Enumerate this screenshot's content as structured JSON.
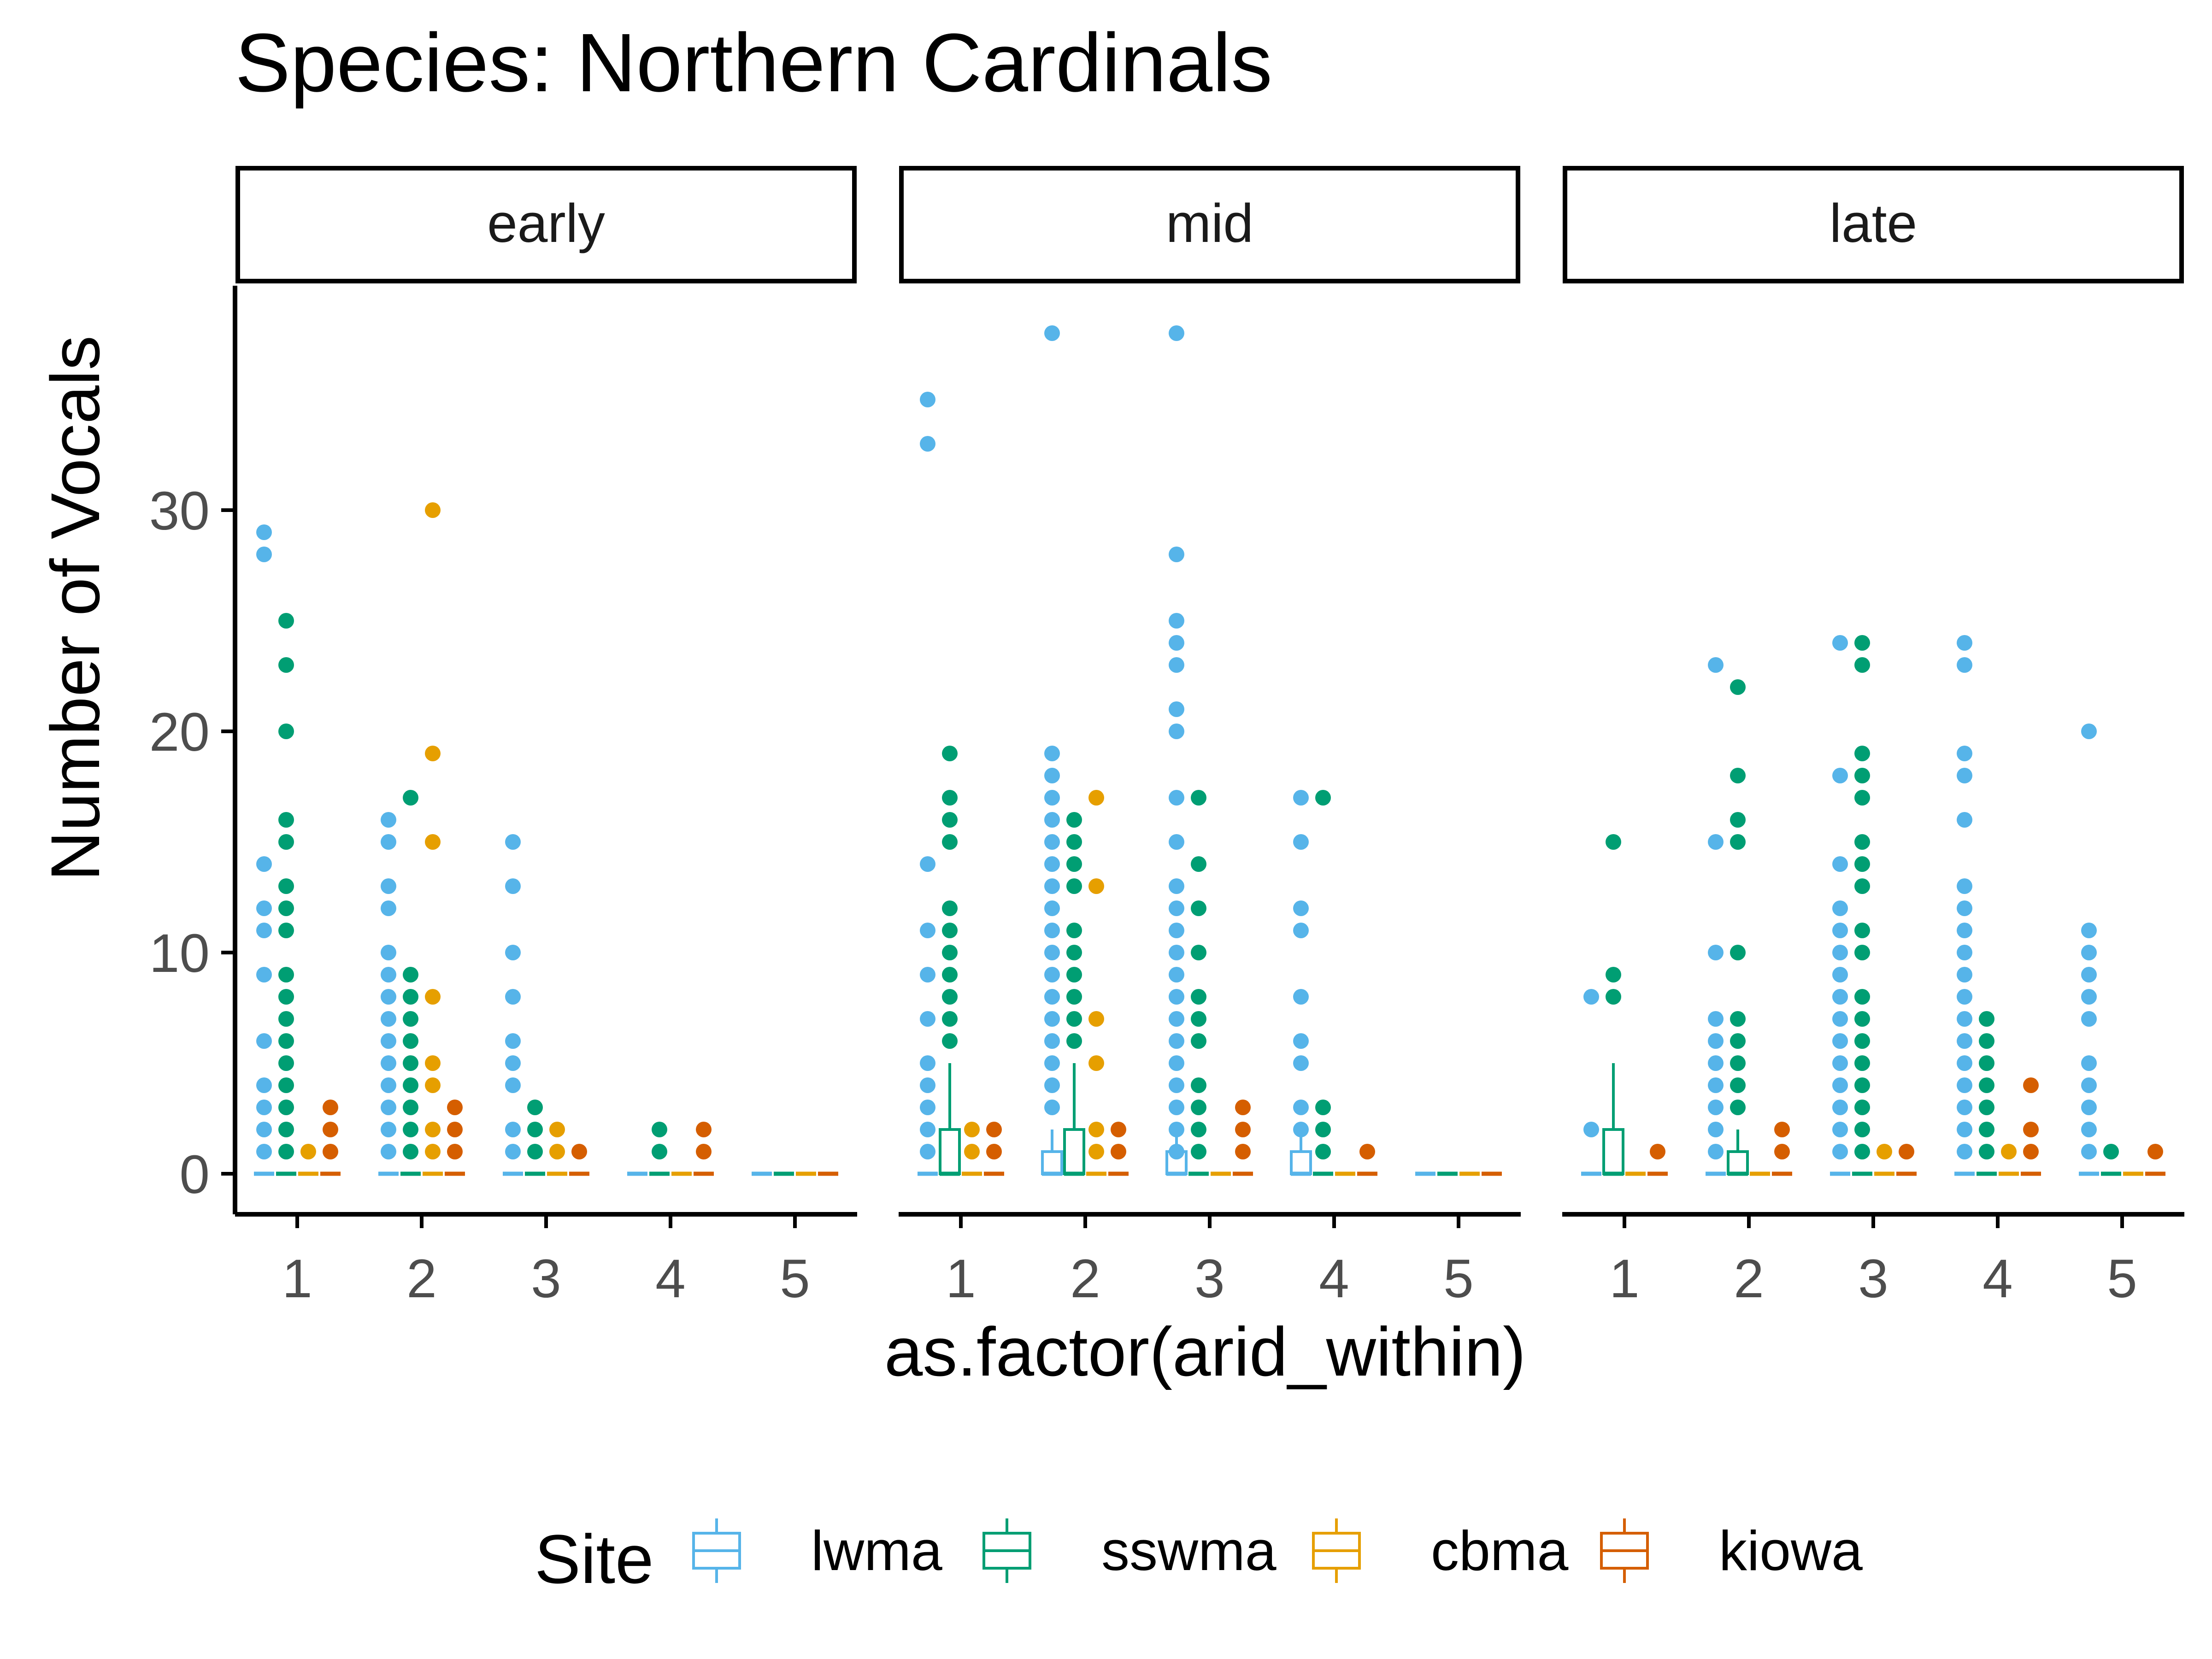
{
  "chart_data": {
    "type": "boxplot",
    "title": "Species: Northern Cardinals",
    "xlabel": "as.factor(arid_within)",
    "ylabel": "Number of Vocals",
    "facets": [
      "early",
      "mid",
      "late"
    ],
    "categories": [
      "1",
      "2",
      "3",
      "4",
      "5"
    ],
    "y_ticks": [
      0,
      10,
      20,
      30
    ],
    "ylim": [
      -2,
      40
    ],
    "legend": {
      "title": "Site",
      "position": "bottom",
      "entries": [
        {
          "name": "lwma",
          "color": "#56B4E9"
        },
        {
          "name": "sswma",
          "color": "#009E73"
        },
        {
          "name": "cbma",
          "color": "#E69F00"
        },
        {
          "name": "kiowa",
          "color": "#D55E00"
        }
      ]
    },
    "boxes": [
      {
        "facet": 1,
        "x": 1,
        "site": 1,
        "q1": 0,
        "median": 0,
        "q3": 2,
        "whisker_high": 5
      },
      {
        "facet": 1,
        "x": 2,
        "site": 0,
        "q1": 0,
        "median": 0,
        "q3": 1,
        "whisker_high": 2
      },
      {
        "facet": 1,
        "x": 2,
        "site": 1,
        "q1": 0,
        "median": 0,
        "q3": 2,
        "whisker_high": 5
      },
      {
        "facet": 1,
        "x": 3,
        "site": 0,
        "q1": 0,
        "median": 0,
        "q3": 1,
        "whisker_high": 2
      },
      {
        "facet": 1,
        "x": 4,
        "site": 0,
        "q1": 0,
        "median": 0,
        "q3": 1,
        "whisker_high": 2
      },
      {
        "facet": 2,
        "x": 1,
        "site": 1,
        "q1": 0,
        "median": 0,
        "q3": 2,
        "whisker_high": 5
      },
      {
        "facet": 2,
        "x": 2,
        "site": 1,
        "q1": 0,
        "median": 0,
        "q3": 1,
        "whisker_high": 2
      }
    ],
    "points": [
      {
        "facet": 0,
        "x": 1,
        "site": 0,
        "values": [
          29,
          28,
          14,
          12,
          11,
          9,
          6,
          4,
          3,
          2,
          1
        ]
      },
      {
        "facet": 0,
        "x": 1,
        "site": 1,
        "values": [
          25,
          23,
          20,
          16,
          15,
          13,
          12,
          11,
          9,
          8,
          7,
          6,
          5,
          4,
          3,
          2,
          1
        ]
      },
      {
        "facet": 0,
        "x": 1,
        "site": 2,
        "values": [
          1
        ]
      },
      {
        "facet": 0,
        "x": 1,
        "site": 3,
        "values": [
          3,
          2,
          1
        ]
      },
      {
        "facet": 0,
        "x": 2,
        "site": 0,
        "values": [
          16,
          15,
          13,
          12,
          10,
          9,
          8,
          7,
          6,
          5,
          4,
          3,
          2,
          1
        ]
      },
      {
        "facet": 0,
        "x": 2,
        "site": 1,
        "values": [
          17,
          9,
          8,
          7,
          6,
          5,
          4,
          3,
          2,
          1
        ]
      },
      {
        "facet": 0,
        "x": 2,
        "site": 2,
        "values": [
          30,
          19,
          15,
          8,
          5,
          4,
          2,
          1
        ]
      },
      {
        "facet": 0,
        "x": 2,
        "site": 3,
        "values": [
          3,
          2,
          1
        ]
      },
      {
        "facet": 0,
        "x": 3,
        "site": 0,
        "values": [
          15,
          13,
          10,
          8,
          6,
          5,
          4,
          2,
          1
        ]
      },
      {
        "facet": 0,
        "x": 3,
        "site": 1,
        "values": [
          3,
          2,
          1
        ]
      },
      {
        "facet": 0,
        "x": 3,
        "site": 2,
        "values": [
          2,
          1
        ]
      },
      {
        "facet": 0,
        "x": 3,
        "site": 3,
        "values": [
          1
        ]
      },
      {
        "facet": 0,
        "x": 4,
        "site": 1,
        "values": [
          2,
          1
        ]
      },
      {
        "facet": 0,
        "x": 4,
        "site": 3,
        "values": [
          2,
          1
        ]
      },
      {
        "facet": 1,
        "x": 1,
        "site": 0,
        "values": [
          35,
          33,
          14,
          11,
          9,
          7,
          5,
          4,
          3,
          2,
          1
        ]
      },
      {
        "facet": 1,
        "x": 1,
        "site": 1,
        "values": [
          19,
          17,
          16,
          15,
          12,
          11,
          10,
          9,
          8,
          7,
          6
        ]
      },
      {
        "facet": 1,
        "x": 1,
        "site": 2,
        "values": [
          2,
          1
        ]
      },
      {
        "facet": 1,
        "x": 1,
        "site": 3,
        "values": [
          2,
          1
        ]
      },
      {
        "facet": 1,
        "x": 2,
        "site": 0,
        "values": [
          38,
          19,
          18,
          17,
          16,
          15,
          14,
          13,
          12,
          11,
          10,
          9,
          8,
          7,
          6,
          5,
          4,
          3
        ]
      },
      {
        "facet": 1,
        "x": 2,
        "site": 1,
        "values": [
          16,
          15,
          14,
          13,
          11,
          10,
          9,
          8,
          7,
          6
        ]
      },
      {
        "facet": 1,
        "x": 2,
        "site": 2,
        "values": [
          17,
          13,
          7,
          5,
          2,
          1
        ]
      },
      {
        "facet": 1,
        "x": 2,
        "site": 3,
        "values": [
          2,
          1
        ]
      },
      {
        "facet": 1,
        "x": 3,
        "site": 0,
        "values": [
          38,
          28,
          25,
          24,
          23,
          21,
          20,
          17,
          15,
          13,
          12,
          11,
          10,
          9,
          8,
          7,
          6,
          5,
          4,
          3,
          2,
          1
        ]
      },
      {
        "facet": 1,
        "x": 3,
        "site": 1,
        "values": [
          17,
          14,
          12,
          10,
          8,
          7,
          6,
          4,
          3,
          2,
          1
        ]
      },
      {
        "facet": 1,
        "x": 3,
        "site": 3,
        "values": [
          3,
          2,
          1
        ]
      },
      {
        "facet": 1,
        "x": 4,
        "site": 0,
        "values": [
          17,
          15,
          12,
          11,
          8,
          6,
          5,
          3,
          2
        ]
      },
      {
        "facet": 1,
        "x": 4,
        "site": 1,
        "values": [
          17,
          3,
          2,
          1
        ]
      },
      {
        "facet": 1,
        "x": 4,
        "site": 3,
        "values": [
          1
        ]
      },
      {
        "facet": 2,
        "x": 1,
        "site": 0,
        "values": [
          8,
          2
        ]
      },
      {
        "facet": 2,
        "x": 1,
        "site": 1,
        "values": [
          15,
          9,
          8
        ]
      },
      {
        "facet": 2,
        "x": 1,
        "site": 3,
        "values": [
          1
        ]
      },
      {
        "facet": 2,
        "x": 2,
        "site": 0,
        "values": [
          23,
          15,
          10,
          7,
          6,
          5,
          4,
          3,
          2,
          1
        ]
      },
      {
        "facet": 2,
        "x": 2,
        "site": 1,
        "values": [
          22,
          18,
          16,
          15,
          10,
          7,
          6,
          5,
          4,
          3
        ]
      },
      {
        "facet": 2,
        "x": 2,
        "site": 3,
        "values": [
          2,
          1
        ]
      },
      {
        "facet": 2,
        "x": 3,
        "site": 0,
        "values": [
          24,
          18,
          14,
          12,
          11,
          10,
          9,
          8,
          7,
          6,
          5,
          4,
          3,
          2,
          1
        ]
      },
      {
        "facet": 2,
        "x": 3,
        "site": 1,
        "values": [
          24,
          23,
          19,
          18,
          17,
          15,
          14,
          13,
          11,
          10,
          8,
          7,
          6,
          5,
          4,
          3,
          2,
          1
        ]
      },
      {
        "facet": 2,
        "x": 3,
        "site": 2,
        "values": [
          1
        ]
      },
      {
        "facet": 2,
        "x": 3,
        "site": 3,
        "values": [
          1
        ]
      },
      {
        "facet": 2,
        "x": 4,
        "site": 0,
        "values": [
          24,
          23,
          19,
          18,
          16,
          13,
          12,
          11,
          10,
          9,
          8,
          7,
          6,
          5,
          4,
          3,
          2,
          1
        ]
      },
      {
        "facet": 2,
        "x": 4,
        "site": 1,
        "values": [
          7,
          6,
          5,
          4,
          3,
          2,
          1
        ]
      },
      {
        "facet": 2,
        "x": 4,
        "site": 2,
        "values": [
          1
        ]
      },
      {
        "facet": 2,
        "x": 4,
        "site": 3,
        "values": [
          4,
          2,
          1
        ]
      },
      {
        "facet": 2,
        "x": 5,
        "site": 0,
        "values": [
          20,
          11,
          10,
          9,
          8,
          7,
          5,
          4,
          3,
          2,
          1
        ]
      },
      {
        "facet": 2,
        "x": 5,
        "site": 1,
        "values": [
          1
        ]
      },
      {
        "facet": 2,
        "x": 5,
        "site": 3,
        "values": [
          1
        ]
      }
    ]
  }
}
